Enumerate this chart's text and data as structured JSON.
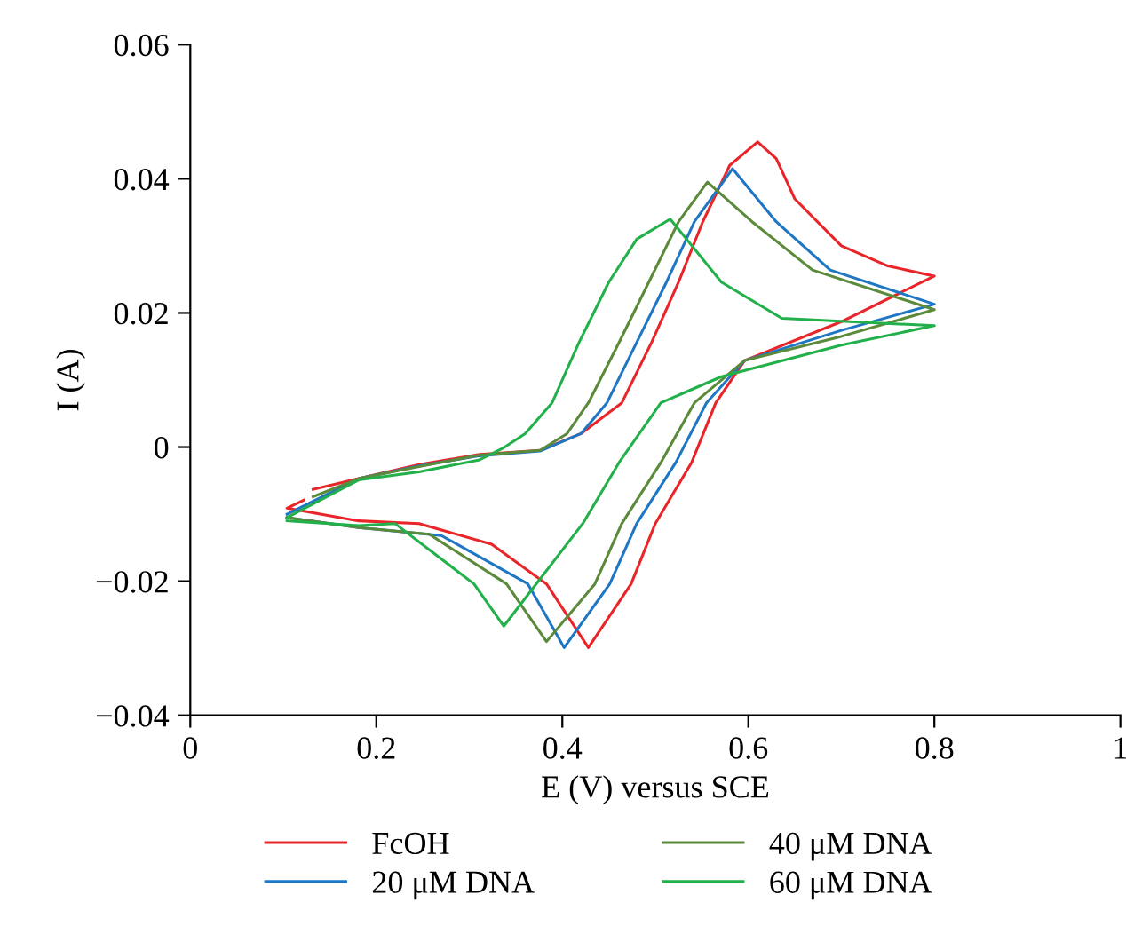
{
  "chart_data": {
    "type": "line",
    "xlabel": "E (V) versus SCE",
    "ylabel": "I (A)",
    "xlim": [
      0,
      1
    ],
    "ylim": [
      -0.04,
      0.06
    ],
    "xticks": [
      0,
      0.2,
      0.4,
      0.6,
      0.8,
      1
    ],
    "yticks": [
      {
        "value": -0.04,
        "label": "−0.04"
      },
      {
        "value": -0.02,
        "label": "−0.02"
      },
      0,
      {
        "value": 0.02,
        "label": "0.02"
      },
      {
        "value": 0.04,
        "label": "0.04"
      },
      {
        "value": 0.06,
        "label": "0.06"
      }
    ],
    "grid": false,
    "legend": "bottom",
    "marker": "none",
    "line_style": "solid",
    "series": [
      {
        "name": "FcOH",
        "color": "#e8262a",
        "x": [
          0.132,
          0.181,
          0.246,
          0.311,
          0.376,
          0.42,
          0.464,
          0.496,
          0.525,
          0.551,
          0.58,
          0.61,
          0.63,
          0.65,
          0.7,
          0.75,
          0.8,
          0.7,
          0.596,
          0.565,
          0.539,
          0.5,
          0.474,
          0.428,
          0.383,
          0.324,
          0.246,
          0.181,
          0.104,
          0.122
        ],
        "values": [
          -0.0063,
          -0.0047,
          -0.0026,
          -0.0011,
          -0.0005,
          0.002,
          0.0066,
          0.0156,
          0.0246,
          0.0336,
          0.042,
          0.0455,
          0.043,
          0.037,
          0.03,
          0.027,
          0.0255,
          0.0187,
          0.0129,
          0.0066,
          -0.0023,
          -0.0114,
          -0.0204,
          -0.0299,
          -0.0204,
          -0.0145,
          -0.0114,
          -0.011,
          -0.0091,
          -0.0079
        ]
      },
      {
        "name": "20 μM DNA",
        "color": "#1f77c4",
        "x": [
          0.104,
          0.181,
          0.246,
          0.311,
          0.376,
          0.42,
          0.448,
          0.48,
          0.512,
          0.542,
          0.583,
          0.63,
          0.688,
          0.8,
          0.7,
          0.596,
          0.555,
          0.522,
          0.48,
          0.451,
          0.402,
          0.363,
          0.27,
          0.181,
          0.104
        ],
        "values": [
          -0.01,
          -0.0047,
          -0.0028,
          -0.0013,
          -0.0006,
          0.002,
          0.0066,
          0.0156,
          0.0246,
          0.0336,
          0.0415,
          0.0336,
          0.0264,
          0.0213,
          0.0174,
          0.0129,
          0.0066,
          -0.0023,
          -0.0114,
          -0.0204,
          -0.0299,
          -0.0204,
          -0.0132,
          -0.012,
          -0.0105
        ]
      },
      {
        "name": "40 μM DNA",
        "color": "#5a8a3a",
        "x": [
          0.132,
          0.181,
          0.246,
          0.311,
          0.376,
          0.405,
          0.428,
          0.461,
          0.493,
          0.525,
          0.556,
          0.604,
          0.669,
          0.8,
          0.7,
          0.596,
          0.542,
          0.506,
          0.464,
          0.435,
          0.383,
          0.34,
          0.257,
          0.181,
          0.104
        ],
        "values": [
          -0.0074,
          -0.0047,
          -0.0029,
          -0.0012,
          -0.0005,
          0.002,
          0.0066,
          0.0156,
          0.0246,
          0.0336,
          0.0395,
          0.0336,
          0.0264,
          0.0205,
          0.0165,
          0.0129,
          0.0066,
          -0.0023,
          -0.0114,
          -0.0204,
          -0.029,
          -0.0204,
          -0.013,
          -0.012,
          -0.0105
        ]
      },
      {
        "name": "60 μM DNA",
        "color": "#22b04b",
        "x": [
          0.104,
          0.181,
          0.246,
          0.311,
          0.337,
          0.36,
          0.389,
          0.418,
          0.45,
          0.48,
          0.516,
          0.571,
          0.636,
          0.8,
          0.7,
          0.571,
          0.506,
          0.461,
          0.422,
          0.337,
          0.305,
          0.22,
          0.181,
          0.104
        ],
        "values": [
          -0.0105,
          -0.0049,
          -0.0037,
          -0.0019,
          -0.0001,
          0.002,
          0.0066,
          0.0156,
          0.0246,
          0.031,
          0.034,
          0.0246,
          0.0192,
          0.0181,
          0.0152,
          0.0105,
          0.0066,
          -0.0023,
          -0.0114,
          -0.0267,
          -0.0204,
          -0.0114,
          -0.0117,
          -0.011
        ]
      }
    ]
  }
}
